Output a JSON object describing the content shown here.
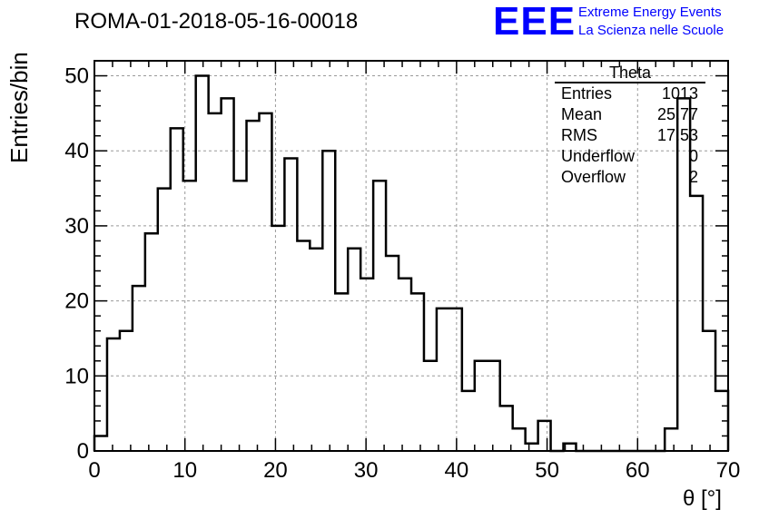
{
  "title": "ROMA-01-2018-05-16-00018",
  "logo": {
    "mark": "EEE",
    "line1": "Extreme Energy Events",
    "line2": "La Scienza nelle Scuole",
    "color": "#0000ff"
  },
  "stats": {
    "title": "Theta",
    "rows": [
      {
        "key": "Entries",
        "value": "1013"
      },
      {
        "key": "Mean",
        "value": "25.77"
      },
      {
        "key": "RMS",
        "value": "17.53"
      },
      {
        "key": "Underflow",
        "value": "0"
      },
      {
        "key": "Overflow",
        "value": "2"
      }
    ]
  },
  "chart_data": {
    "type": "histogram",
    "title": "ROMA-01-2018-05-16-00018",
    "xlabel": "θ [°]",
    "ylabel": "Entries/bin",
    "xlim": [
      0,
      70
    ],
    "ylim": [
      0,
      52
    ],
    "bin_width": 1.4,
    "x_ticks": [
      0,
      10,
      20,
      30,
      40,
      50,
      60,
      70
    ],
    "y_ticks": [
      0,
      10,
      20,
      30,
      40,
      50
    ],
    "grid": true,
    "values": [
      2,
      15,
      16,
      22,
      29,
      35,
      43,
      36,
      50,
      45,
      47,
      36,
      44,
      45,
      30,
      39,
      28,
      27,
      40,
      21,
      27,
      23,
      36,
      26,
      23,
      21,
      12,
      19,
      19,
      8,
      12,
      12,
      6,
      3,
      1,
      4,
      0,
      1,
      0,
      0,
      0,
      0,
      0,
      0,
      0,
      3,
      47,
      34,
      16,
      8
    ]
  }
}
